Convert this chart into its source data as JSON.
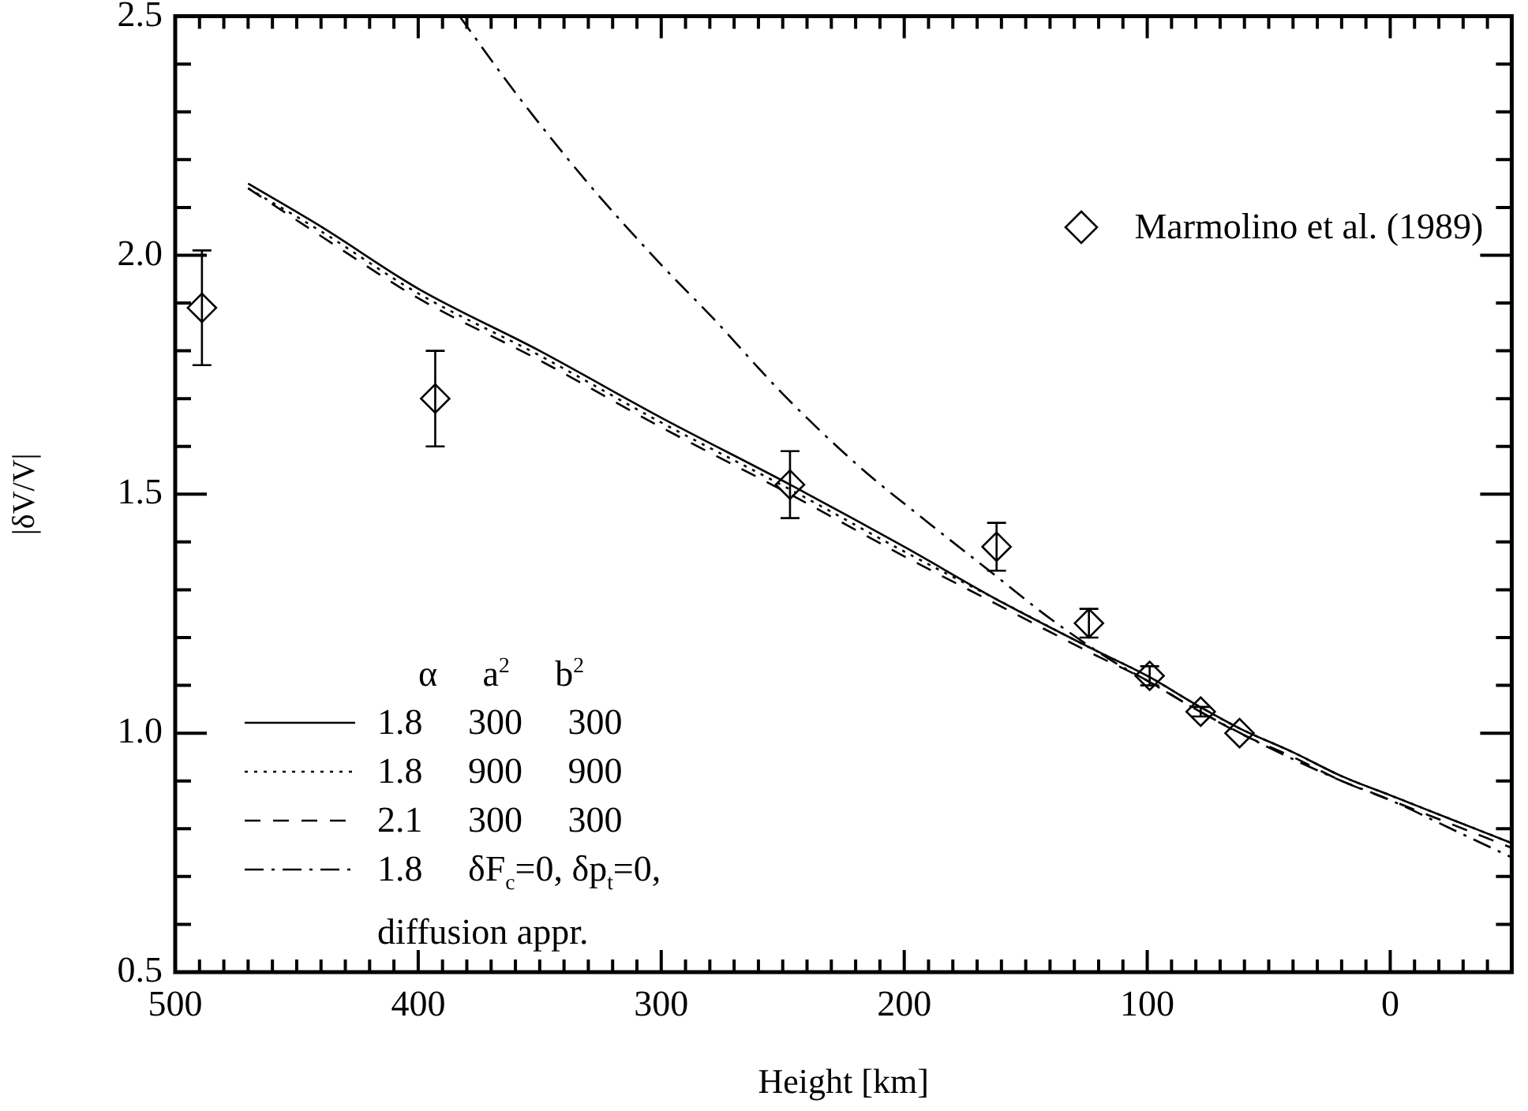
{
  "chart_data": {
    "type": "line",
    "xlabel": "Height [km]",
    "ylabel": "|δV/V|",
    "legend_title": "α     a$^{2}$     b$^{2}$",
    "legend": "bottom left",
    "grid": false,
    "xlim": [
      500,
      -50
    ],
    "ylim": [
      0.5,
      2.5
    ],
    "xticks": [
      500,
      {
        "value": 490,
        "label": null
      },
      {
        "value": 480,
        "label": null
      },
      {
        "value": 470,
        "label": null
      },
      {
        "value": 460,
        "label": null
      },
      {
        "value": 450,
        "label": null
      },
      {
        "value": 440,
        "label": null
      },
      {
        "value": 430,
        "label": null
      },
      {
        "value": 420,
        "label": null
      },
      {
        "value": 410,
        "label": null
      },
      400,
      {
        "value": 390,
        "label": null
      },
      {
        "value": 380,
        "label": null
      },
      {
        "value": 370,
        "label": null
      },
      {
        "value": 360,
        "label": null
      },
      {
        "value": 350,
        "label": null
      },
      {
        "value": 340,
        "label": null
      },
      {
        "value": 330,
        "label": null
      },
      {
        "value": 320,
        "label": null
      },
      {
        "value": 310,
        "label": null
      },
      300,
      {
        "value": 290,
        "label": null
      },
      {
        "value": 280,
        "label": null
      },
      {
        "value": 270,
        "label": null
      },
      {
        "value": 260,
        "label": null
      },
      {
        "value": 250,
        "label": null
      },
      {
        "value": 240,
        "label": null
      },
      {
        "value": 230,
        "label": null
      },
      {
        "value": 220,
        "label": null
      },
      {
        "value": 210,
        "label": null
      },
      200,
      {
        "value": 190,
        "label": null
      },
      {
        "value": 180,
        "label": null
      },
      {
        "value": 170,
        "label": null
      },
      {
        "value": 160,
        "label": null
      },
      {
        "value": 150,
        "label": null
      },
      {
        "value": 140,
        "label": null
      },
      {
        "value": 130,
        "label": null
      },
      {
        "value": 120,
        "label": null
      },
      {
        "value": 110,
        "label": null
      },
      100,
      {
        "value": 90,
        "label": null
      },
      {
        "value": 80,
        "label": null
      },
      {
        "value": 70,
        "label": null
      },
      {
        "value": 60,
        "label": null
      },
      {
        "value": 50,
        "label": null
      },
      {
        "value": 40,
        "label": null
      },
      {
        "value": 30,
        "label": null
      },
      {
        "value": 20,
        "label": null
      },
      {
        "value": 10,
        "label": null
      },
      0,
      {
        "value": -10,
        "label": null
      },
      {
        "value": -20,
        "label": null
      },
      {
        "value": -30,
        "label": null
      },
      {
        "value": -40,
        "label": null
      }
    ],
    "yticks": [
      {
        "value": 0.5,
        "label": "0.5"
      },
      {
        "value": 0.6,
        "label": null
      },
      {
        "value": 0.7,
        "label": null
      },
      {
        "value": 0.8,
        "label": null
      },
      {
        "value": 0.9,
        "label": null
      },
      {
        "value": 1,
        "label": "1.0"
      },
      {
        "value": 1.1,
        "label": null
      },
      {
        "value": 1.2,
        "label": null
      },
      {
        "value": 1.3,
        "label": null
      },
      {
        "value": 1.4,
        "label": null
      },
      {
        "value": 1.5,
        "label": "1.5"
      },
      {
        "value": 1.6,
        "label": null
      },
      {
        "value": 1.7,
        "label": null
      },
      {
        "value": 1.8,
        "label": null
      },
      {
        "value": 1.9,
        "label": null
      },
      {
        "value": 2,
        "label": "2.0"
      },
      {
        "value": 2.1,
        "label": null
      },
      {
        "value": 2.2,
        "label": null
      },
      {
        "value": 2.3,
        "label": null
      },
      {
        "value": 2.4,
        "label": null
      },
      {
        "value": 2.5,
        "label": "2.5"
      }
    ],
    "series": [
      {
        "name": "Marmolino et al. (1989)",
        "type": "scatter",
        "marker": "diamond",
        "color": "#000000",
        "x": [
          489,
          393,
          247,
          162,
          124,
          99,
          78,
          62
        ],
        "values": [
          1.89,
          1.7,
          1.52,
          1.39,
          1.23,
          1.12,
          1.045,
          1.0
        ],
        "errors": [
          0.12,
          0.1,
          0.07,
          0.05,
          0.03,
          0.02,
          0.01,
          null
        ]
      },
      {
        "name": "1.8     300     300",
        "type": "line",
        "line_style": "solid",
        "color": "#000000",
        "x": [
          470,
          440,
          400,
          350,
          300,
          247,
          200,
          162,
          124,
          100,
          80,
          62,
          40,
          20,
          0,
          -25,
          -50
        ],
        "values": [
          2.15,
          2.06,
          1.93,
          1.8,
          1.66,
          1.52,
          1.39,
          1.28,
          1.18,
          1.12,
          1.06,
          1.01,
          0.96,
          0.91,
          0.87,
          0.82,
          0.77
        ]
      },
      {
        "name": "1.8     900     900",
        "type": "line",
        "line_style": "dotted",
        "color": "#000000",
        "x": [
          470,
          440,
          400,
          350,
          300,
          247,
          200,
          162,
          124,
          100,
          80,
          62,
          40,
          20,
          0,
          -25,
          -50
        ],
        "values": [
          2.14,
          2.05,
          1.92,
          1.79,
          1.65,
          1.51,
          1.38,
          1.28,
          1.18,
          1.12,
          1.06,
          1.01,
          0.96,
          0.91,
          0.87,
          0.82,
          0.77
        ]
      },
      {
        "name": "2.1     300     300",
        "type": "line",
        "line_style": "dashed",
        "color": "#000000",
        "x": [
          470,
          440,
          400,
          350,
          300,
          247,
          200,
          162,
          124,
          100,
          80,
          62,
          40,
          20,
          0,
          -25,
          -50
        ],
        "values": [
          2.14,
          2.04,
          1.91,
          1.78,
          1.64,
          1.5,
          1.37,
          1.27,
          1.17,
          1.11,
          1.05,
          1.0,
          0.95,
          0.9,
          0.86,
          0.81,
          0.76
        ]
      },
      {
        "name": "1.8     δF$_{c}$=0, δp$_{t}$=0, diffusion appr.",
        "type": "line",
        "line_style": "dashdot",
        "color": "#000000",
        "x": [
          383,
          360,
          330,
          300,
          279,
          250,
          219,
          190,
          165,
          140,
          114,
          100,
          80,
          50,
          20,
          0,
          -25,
          -50
        ],
        "values": [
          2.5,
          2.34,
          2.15,
          1.98,
          1.87,
          1.71,
          1.56,
          1.44,
          1.34,
          1.24,
          1.15,
          1.11,
          1.05,
          0.97,
          0.9,
          0.86,
          0.8,
          0.74
        ]
      }
    ]
  }
}
